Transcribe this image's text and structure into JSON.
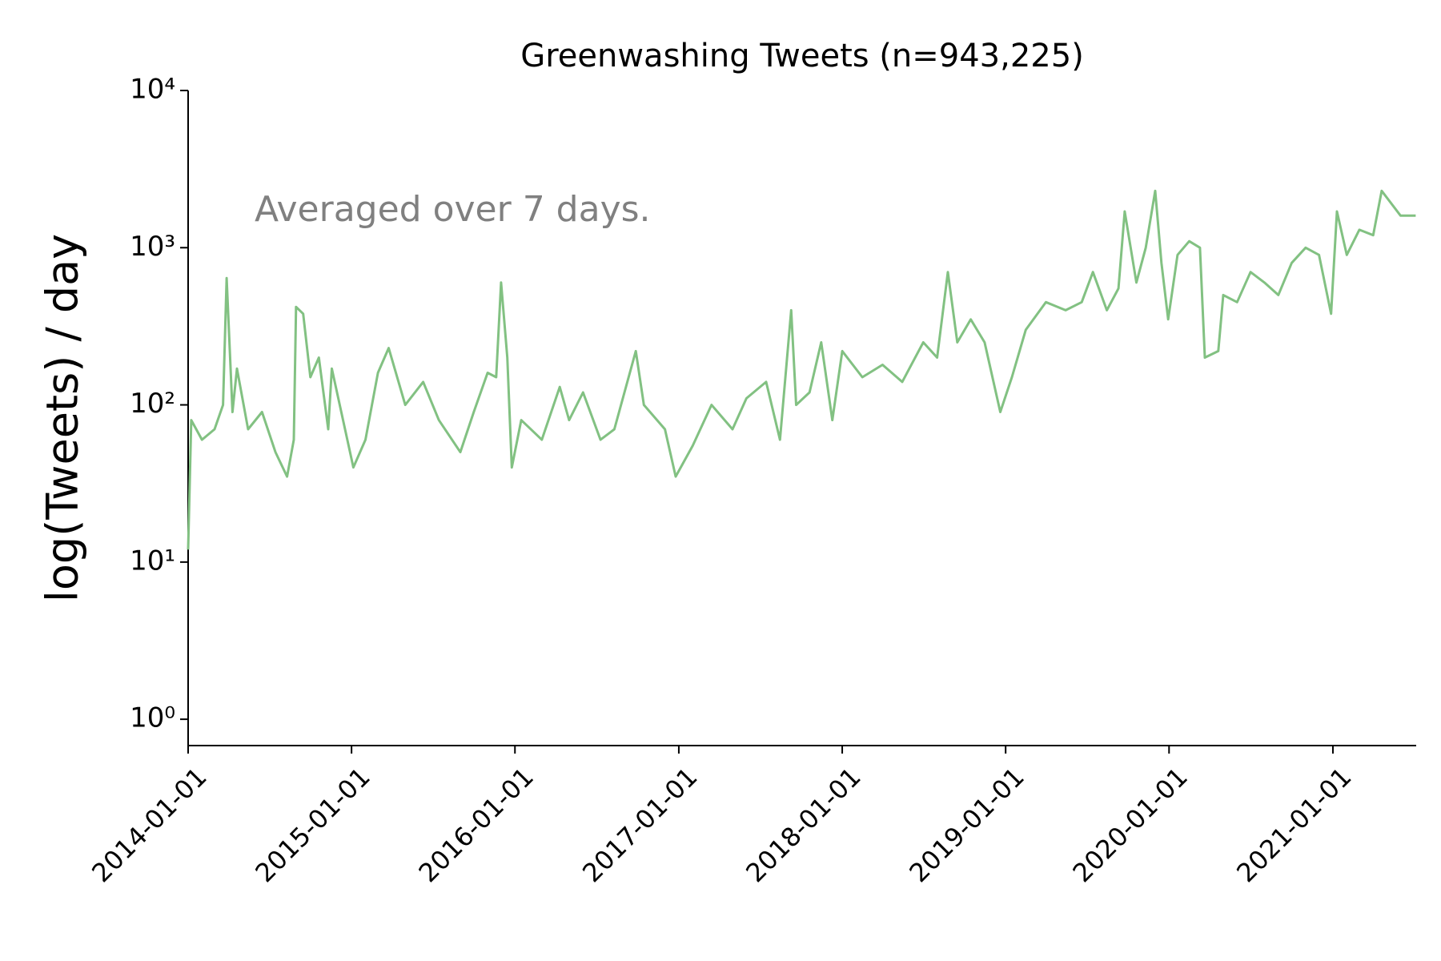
{
  "chart_data": {
    "type": "line",
    "title": "Greenwashing Tweets (n=943,225)",
    "y_label": "log(Tweets) / day",
    "annotation": "Averaged over 7 days.",
    "color": "#82c182",
    "log_y": true,
    "x": [
      "2014-01-01",
      "2014-01-08",
      "2014-02-01",
      "2014-03-01",
      "2014-03-20",
      "2014-03-28",
      "2014-04-10",
      "2014-04-20",
      "2014-05-15",
      "2014-06-15",
      "2014-07-15",
      "2014-08-10",
      "2014-08-25",
      "2014-08-30",
      "2014-09-15",
      "2014-10-01",
      "2014-10-20",
      "2014-11-10",
      "2014-11-18",
      "2015-01-05",
      "2015-02-01",
      "2015-03-01",
      "2015-03-25",
      "2015-05-01",
      "2015-06-10",
      "2015-07-15",
      "2015-09-01",
      "2015-10-01",
      "2015-11-01",
      "2015-11-20",
      "2015-12-01",
      "2015-12-15",
      "2015-12-25",
      "2016-01-15",
      "2016-03-01",
      "2016-04-10",
      "2016-05-01",
      "2016-06-01",
      "2016-07-10",
      "2016-08-10",
      "2016-09-27",
      "2016-10-15",
      "2016-12-01",
      "2016-12-25",
      "2017-02-01",
      "2017-03-15",
      "2017-05-01",
      "2017-06-01",
      "2017-07-15",
      "2017-08-15",
      "2017-09-09",
      "2017-09-20",
      "2017-10-20",
      "2017-11-15",
      "2017-12-10",
      "2018-01-01",
      "2018-02-15",
      "2018-04-01",
      "2018-05-15",
      "2018-07-01",
      "2018-08-01",
      "2018-08-25",
      "2018-09-15",
      "2018-10-15",
      "2018-11-15",
      "2018-12-20",
      "2019-01-15",
      "2019-02-15",
      "2019-04-01",
      "2019-05-15",
      "2019-06-20",
      "2019-07-15",
      "2019-08-15",
      "2019-09-10",
      "2019-09-24",
      "2019-10-20",
      "2019-11-10",
      "2019-12-01",
      "2019-12-15",
      "2019-12-30",
      "2020-01-20",
      "2020-02-15",
      "2020-03-10",
      "2020-03-21",
      "2020-04-20",
      "2020-05-01",
      "2020-06-01",
      "2020-07-01",
      "2020-08-01",
      "2020-09-01",
      "2020-10-01",
      "2020-11-01",
      "2020-12-01",
      "2020-12-28",
      "2021-01-10",
      "2021-02-01",
      "2021-03-01",
      "2021-04-01",
      "2021-04-20",
      "2021-06-01",
      "2021-07-05"
    ],
    "values": [
      12,
      80,
      60,
      70,
      100,
      640,
      90,
      170,
      70,
      90,
      50,
      35,
      60,
      420,
      380,
      150,
      200,
      70,
      170,
      40,
      60,
      160,
      230,
      100,
      140,
      80,
      50,
      90,
      160,
      150,
      600,
      200,
      40,
      80,
      60,
      130,
      80,
      120,
      60,
      70,
      220,
      100,
      70,
      35,
      55,
      100,
      70,
      110,
      140,
      60,
      400,
      100,
      120,
      250,
      80,
      220,
      150,
      180,
      140,
      250,
      200,
      700,
      250,
      350,
      250,
      90,
      150,
      300,
      450,
      400,
      450,
      700,
      400,
      550,
      1700,
      600,
      1000,
      2300,
      800,
      350,
      900,
      1100,
      1000,
      200,
      220,
      500,
      450,
      700,
      600,
      500,
      800,
      1000,
      900,
      380,
      1700,
      900,
      1300,
      1200,
      2300,
      1600,
      1600
    ],
    "xlim": [
      "2014-01-01",
      "2021-07-06"
    ],
    "xticks": [
      "2014-01-01",
      "2015-01-01",
      "2016-01-01",
      "2017-01-01",
      "2018-01-01",
      "2019-01-01",
      "2020-01-01",
      "2021-01-01"
    ],
    "ylim": [
      0.68,
      10000
    ],
    "yticks": [
      {
        "value": 1,
        "label": "10⁰"
      },
      {
        "value": 10,
        "label": "10¹"
      },
      {
        "value": 100,
        "label": "10²"
      },
      {
        "value": 1000,
        "label": "10³"
      },
      {
        "value": 10000,
        "label": "10⁴"
      }
    ]
  }
}
